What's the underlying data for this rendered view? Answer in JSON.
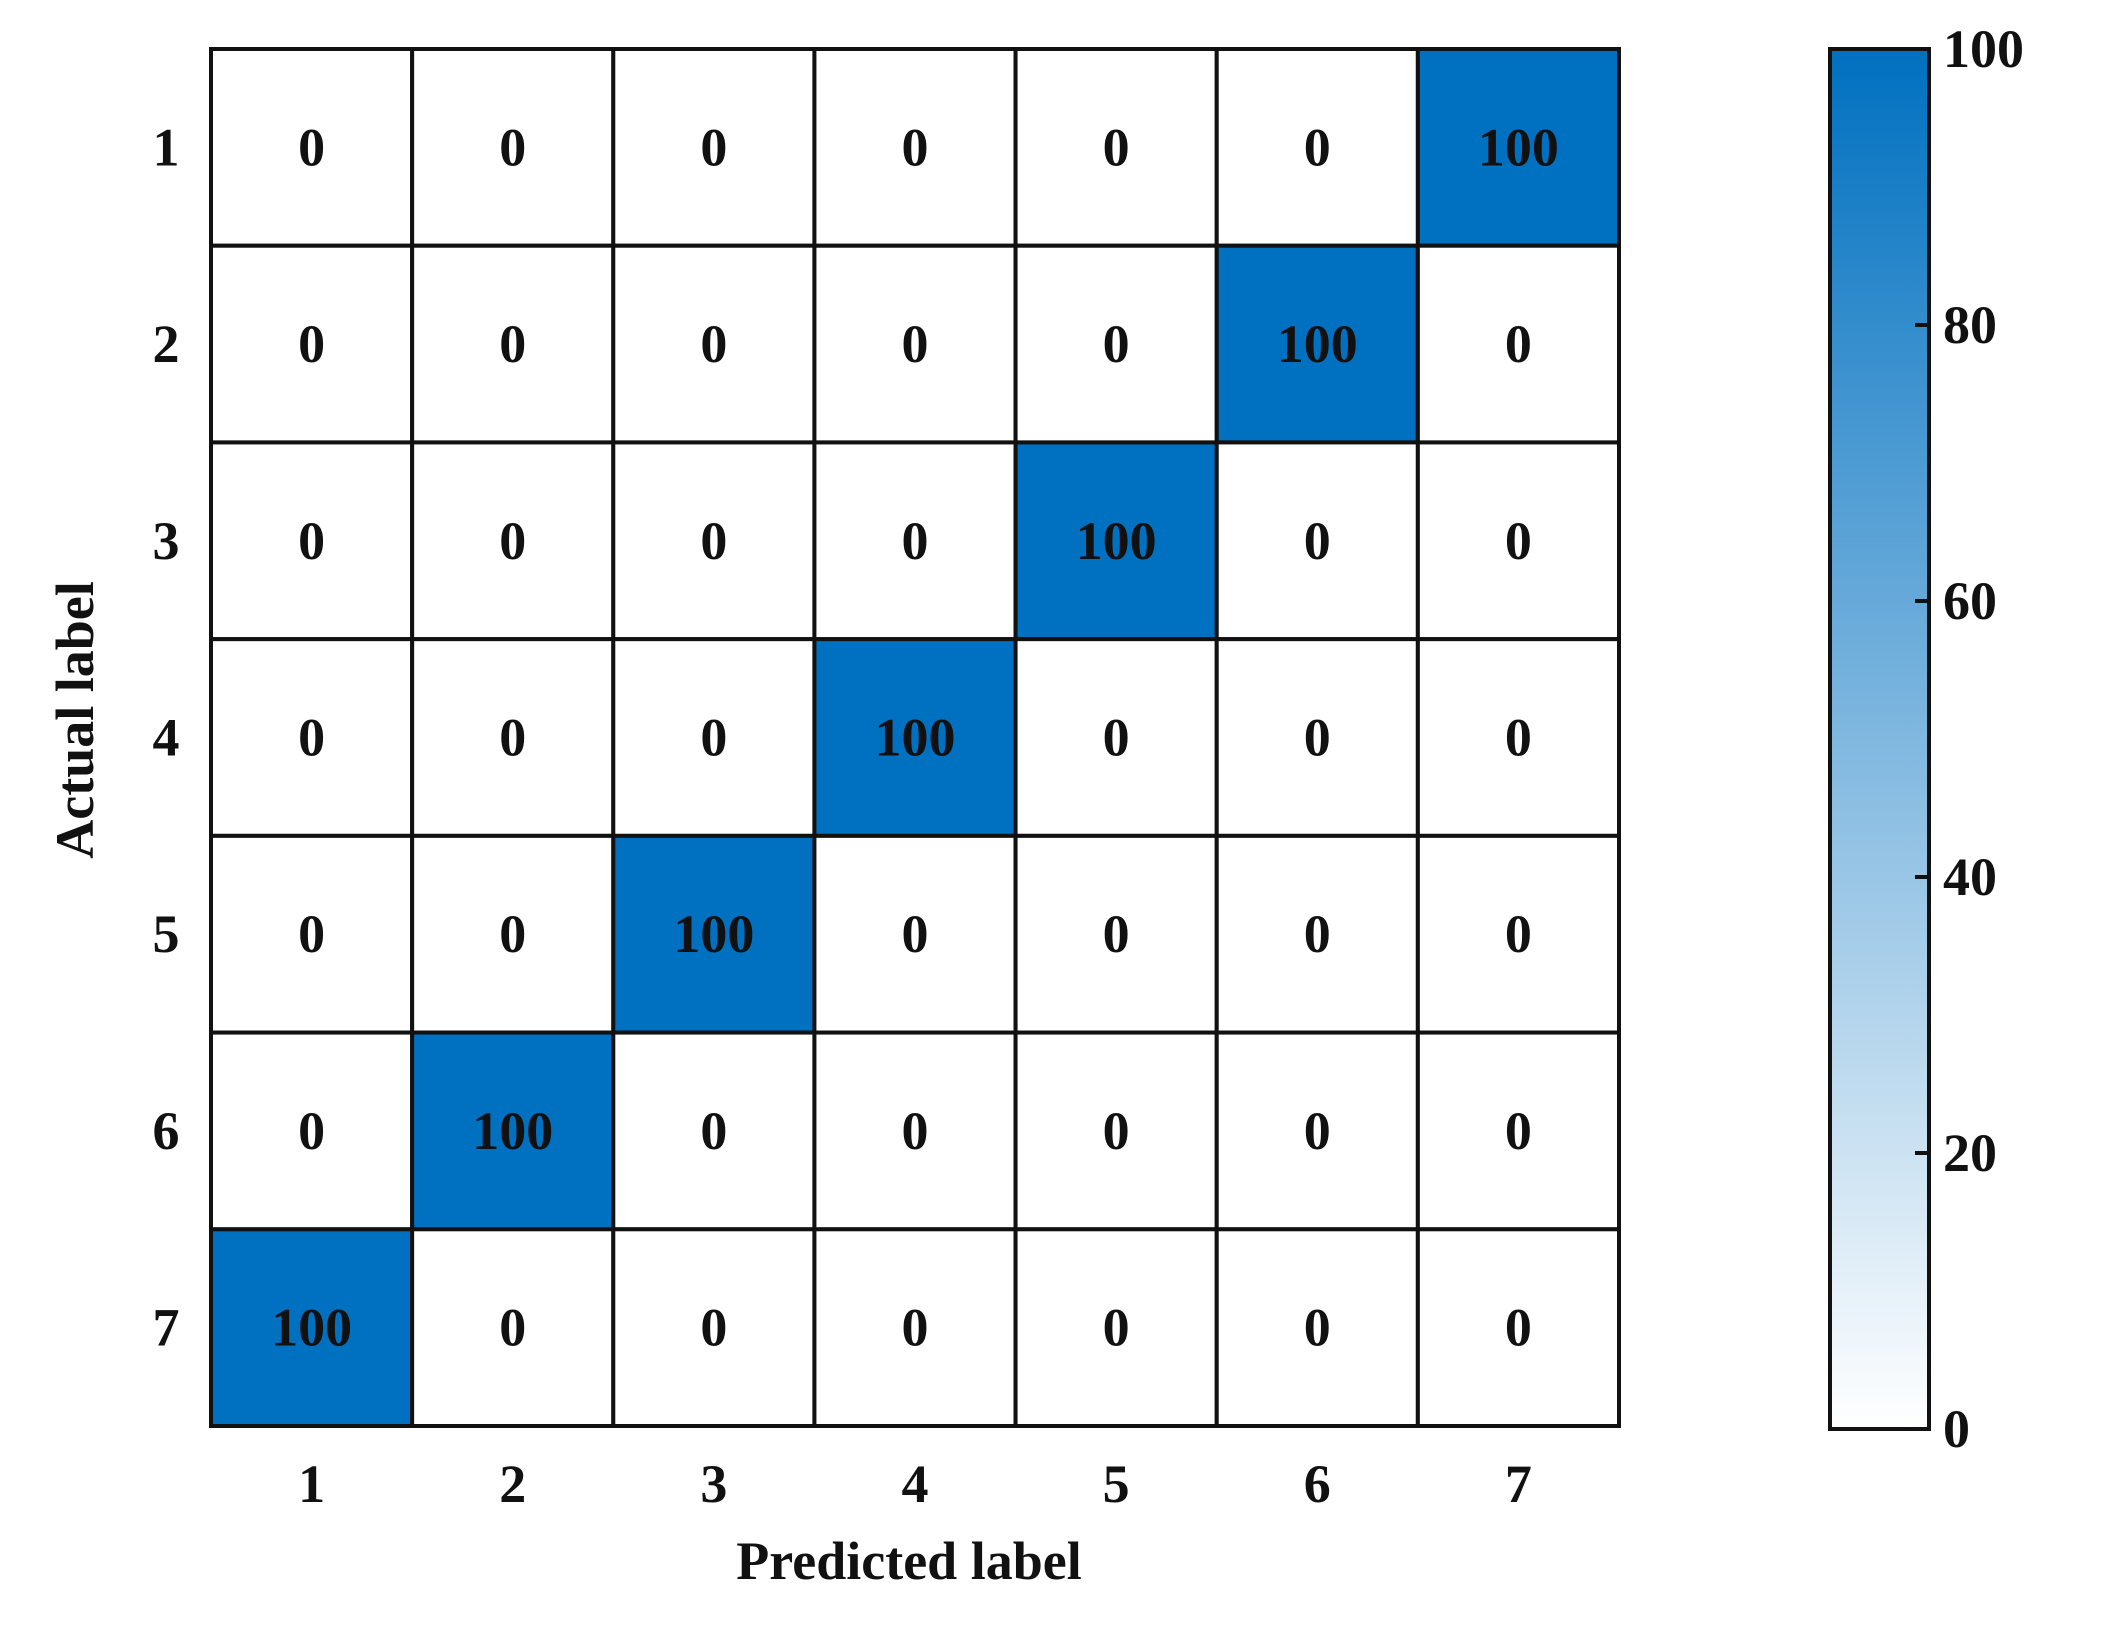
{
  "chart_data": {
    "type": "heatmap",
    "xlabel": "Predicted label",
    "ylabel": "Actual label",
    "x_categories": [
      "1",
      "2",
      "3",
      "4",
      "5",
      "6",
      "7"
    ],
    "y_categories": [
      "1",
      "2",
      "3",
      "4",
      "5",
      "6",
      "7"
    ],
    "values": [
      [
        0,
        0,
        0,
        0,
        0,
        0,
        100
      ],
      [
        0,
        0,
        0,
        0,
        0,
        100,
        0
      ],
      [
        0,
        0,
        0,
        0,
        100,
        0,
        0
      ],
      [
        0,
        0,
        0,
        100,
        0,
        0,
        0
      ],
      [
        0,
        0,
        100,
        0,
        0,
        0,
        0
      ],
      [
        0,
        100,
        0,
        0,
        0,
        0,
        0
      ],
      [
        100,
        0,
        0,
        0,
        0,
        0,
        0
      ]
    ],
    "colormap": [
      "#ffffff",
      "#0070c0"
    ],
    "clim": [
      0,
      100
    ],
    "cticks": [
      0,
      20,
      40,
      60,
      80,
      100
    ]
  }
}
